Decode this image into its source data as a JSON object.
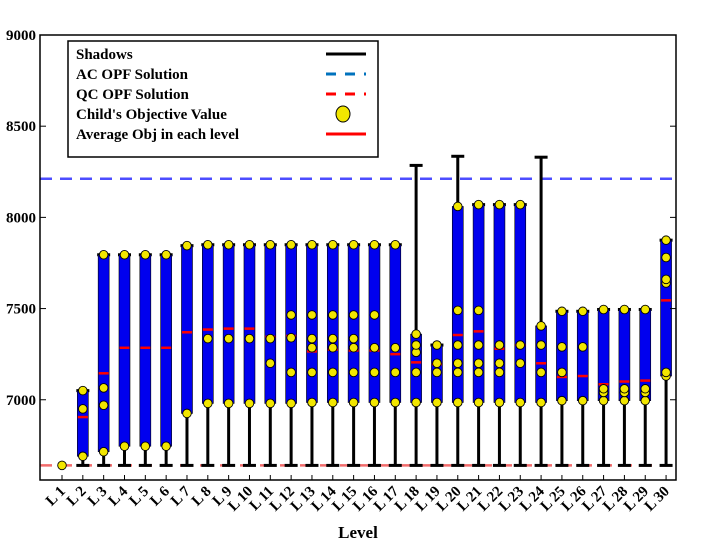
{
  "chart_data": {
    "type": "range-bar",
    "title": "",
    "xlabel": "Level",
    "ylabel": "",
    "ylim": [
      6560,
      9000
    ],
    "yticks": [
      7000,
      7500,
      8000,
      8500,
      9000
    ],
    "ytick_labels": [
      "7000",
      "7500",
      "8000",
      "8500",
      "9000"
    ],
    "legend": {
      "position": "top-left",
      "entries": [
        {
          "label": "Shadows",
          "style": "black-solid-line"
        },
        {
          "label": "AC OPF Solution",
          "style": "blue-dashed-line"
        },
        {
          "label": "QC OPF Solution",
          "style": "red-dashed-line"
        },
        {
          "label": "Child's Objective Value",
          "style": "yellow-circle-marker"
        },
        {
          "label": "Average Obj in each level",
          "style": "red-solid-line"
        }
      ]
    },
    "ac_opf_solution": 8212,
    "qc_opf_solution": 6640,
    "colors": {
      "bar": "#0000ee",
      "shadow": "#000000",
      "ac_line": "#4d4dff",
      "qc_line": "#f26b6b",
      "child": "#f2e600",
      "average": "#ff0000"
    },
    "categories": [
      "L 1",
      "L 2",
      "L 3",
      "L 4",
      "L 5",
      "L 6",
      "L 7",
      "L 8",
      "L 9",
      "L 10",
      "L 11",
      "L 12",
      "L 13",
      "L 14",
      "L 15",
      "L 16",
      "L 17",
      "L 18",
      "L 19",
      "L 20",
      "L 21",
      "L 22",
      "L 23",
      "L 24",
      "L 25",
      "L 26",
      "L 27",
      "L 28",
      "L 29",
      "L 30"
    ],
    "bar_min": [
      6640,
      6690,
      6715,
      6745,
      6745,
      6745,
      6925,
      6980,
      6980,
      6980,
      6980,
      6980,
      6985,
      6985,
      6985,
      6985,
      6985,
      6985,
      6985,
      6985,
      6985,
      6985,
      6985,
      6985,
      6995,
      6995,
      6995,
      6995,
      6995,
      7130
    ],
    "bar_max": [
      6640,
      7050,
      7795,
      7795,
      7795,
      7795,
      7845,
      7850,
      7850,
      7850,
      7850,
      7850,
      7850,
      7850,
      7850,
      7850,
      7850,
      7360,
      7300,
      8060,
      8070,
      8070,
      8070,
      7405,
      7485,
      7485,
      7495,
      7495,
      7495,
      7875
    ],
    "shadow_top": [
      6640,
      7050,
      7795,
      7795,
      7795,
      7795,
      7845,
      7850,
      7850,
      7850,
      7850,
      7850,
      7850,
      7850,
      7850,
      7850,
      7850,
      8285,
      7300,
      8335,
      8070,
      8070,
      8070,
      8330,
      7485,
      7485,
      7495,
      7495,
      7495,
      7875
    ],
    "average": [
      null,
      6905,
      7145,
      7285,
      7285,
      7285,
      7370,
      7385,
      7390,
      7390,
      7345,
      7350,
      7265,
      7275,
      7270,
      7270,
      7250,
      7205,
      7195,
      7355,
      7375,
      7280,
      7300,
      7200,
      7125,
      7130,
      7085,
      7100,
      7105,
      7545
    ],
    "children": [
      [
        6640
      ],
      [
        6690,
        6950,
        7050
      ],
      [
        6715,
        6970,
        7065,
        7795
      ],
      [
        6745,
        7795
      ],
      [
        6745,
        7795
      ],
      [
        6745,
        7795
      ],
      [
        6925,
        7845
      ],
      [
        6980,
        7335,
        7850
      ],
      [
        6980,
        7335,
        7850
      ],
      [
        6980,
        7335,
        7850
      ],
      [
        6980,
        7200,
        7335,
        7850
      ],
      [
        6980,
        7150,
        7340,
        7465,
        7850
      ],
      [
        6985,
        7150,
        7285,
        7335,
        7465,
        7850
      ],
      [
        6985,
        7150,
        7285,
        7335,
        7465,
        7850
      ],
      [
        6985,
        7150,
        7285,
        7335,
        7465,
        7850
      ],
      [
        6985,
        7150,
        7285,
        7465,
        7850
      ],
      [
        6985,
        7150,
        7285,
        7850
      ],
      [
        6985,
        7150,
        7260,
        7300,
        7360
      ],
      [
        6985,
        7150,
        7200,
        7300
      ],
      [
        6985,
        7150,
        7200,
        7300,
        7490,
        8060
      ],
      [
        6985,
        7150,
        7200,
        7300,
        7490,
        8070
      ],
      [
        6985,
        7150,
        7200,
        7300,
        8070
      ],
      [
        6985,
        7200,
        7300,
        8070
      ],
      [
        6985,
        7150,
        7300,
        7405
      ],
      [
        6995,
        7150,
        7290,
        7485
      ],
      [
        6995,
        7290,
        7485
      ],
      [
        6995,
        7040,
        7060,
        7495
      ],
      [
        6995,
        7040,
        7060,
        7495
      ],
      [
        6995,
        7040,
        7060,
        7495
      ],
      [
        7130,
        7150,
        7640,
        7660,
        7780,
        7875
      ]
    ]
  }
}
